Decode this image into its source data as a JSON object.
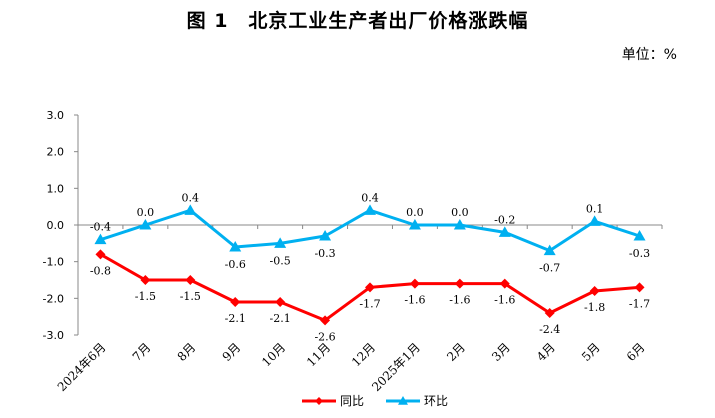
{
  "title": "图 1　北京工业生产者出厂价格涨跌幅",
  "unit_label": "单位：%",
  "chart_data": {
    "type": "line",
    "categories": [
      "2024年6月",
      "7月",
      "8月",
      "9月",
      "10月",
      "11月",
      "12月",
      "2025年1月",
      "2月",
      "3月",
      "4月",
      "5月",
      "6月"
    ],
    "series": [
      {
        "name": "同比",
        "color": "#ff0000",
        "marker": "diamond",
        "values": [
          -0.8,
          -1.5,
          -1.5,
          -2.1,
          -2.1,
          -2.6,
          -1.7,
          -1.6,
          -1.6,
          -1.6,
          -2.4,
          -1.8,
          -1.7
        ],
        "labels": [
          "-0.8",
          "-1.5",
          "-1.5",
          "-2.1",
          "-2.1",
          "-2.6",
          "-1.7",
          "-1.6",
          "-1.6",
          "-1.6",
          "-2.4",
          "-1.8",
          "-1.7"
        ]
      },
      {
        "name": "环比",
        "color": "#00b0f0",
        "marker": "triangle",
        "values": [
          -0.4,
          0.0,
          0.4,
          -0.6,
          -0.5,
          -0.3,
          0.4,
          0.0,
          0.0,
          -0.2,
          -0.7,
          0.1,
          -0.3
        ],
        "labels": [
          "-0.4",
          "0.0",
          "0.4",
          "-0.6",
          "-0.5",
          "-0.3",
          "0.4",
          "0.0",
          "0.0",
          "-0.2",
          "-0.7",
          "0.1",
          "-0.3"
        ]
      }
    ],
    "ylim": [
      -3.0,
      3.0
    ],
    "yticks": [
      "3.0",
      "2.0",
      "1.0",
      "0.0",
      "-1.0",
      "-2.0",
      "-3.0"
    ],
    "ytick_values": [
      3.0,
      2.0,
      1.0,
      0.0,
      -1.0,
      -2.0,
      -3.0
    ],
    "grid": false,
    "legend_position": "bottom-center"
  }
}
